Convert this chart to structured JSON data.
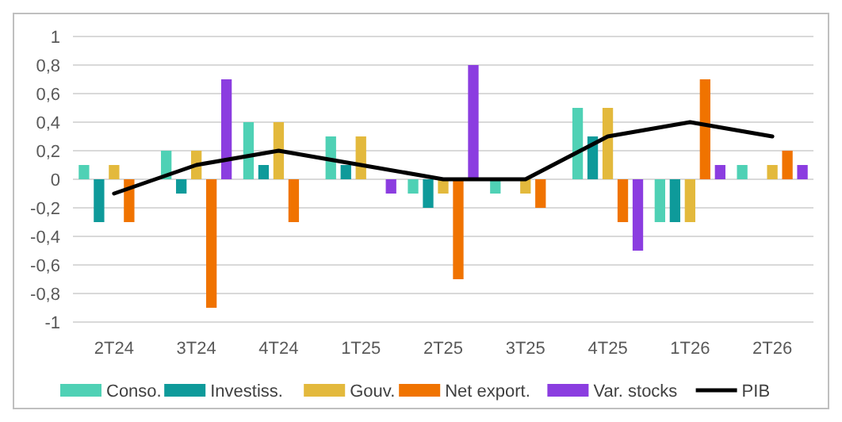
{
  "chart_data": {
    "type": "bar",
    "categories": [
      "2T24",
      "3T24",
      "4T24",
      "1T25",
      "2T25",
      "3T25",
      "4T25",
      "1T26",
      "2T26"
    ],
    "series": [
      {
        "name": "Conso.",
        "color": "#4fd1b5",
        "values": [
          0.1,
          0.2,
          0.4,
          0.3,
          -0.1,
          -0.1,
          0.5,
          -0.3,
          0.1
        ]
      },
      {
        "name": "Investiss.",
        "color": "#0e9a9a",
        "values": [
          -0.3,
          -0.1,
          0.1,
          0.1,
          -0.2,
          0,
          0.3,
          -0.3,
          0
        ]
      },
      {
        "name": "Gouv.",
        "color": "#e3b93c",
        "values": [
          0.1,
          0.2,
          0.4,
          0.3,
          -0.1,
          -0.1,
          0.5,
          -0.3,
          0.1
        ]
      },
      {
        "name": "Net export.",
        "color": "#f07300",
        "values": [
          -0.3,
          -0.9,
          -0.3,
          0,
          -0.7,
          -0.2,
          -0.3,
          0.7,
          0.2
        ]
      },
      {
        "name": "Var. stocks",
        "color": "#8b3de0",
        "values": [
          0,
          0.7,
          0,
          -0.1,
          0.8,
          0,
          -0.5,
          0.1,
          0.1
        ]
      },
      {
        "name": "PIB",
        "type": "line",
        "color": "#000000",
        "values": [
          -0.1,
          0.1,
          0.2,
          0.1,
          0,
          0,
          0.3,
          0.4,
          0.3
        ]
      }
    ],
    "ylim": [
      -1,
      1
    ],
    "yticks": [
      {
        "value": -1,
        "label": "-1"
      },
      {
        "value": -0.8,
        "label": "-0,8"
      },
      {
        "value": -0.6,
        "label": "-0,6"
      },
      {
        "value": -0.4,
        "label": "-0,4"
      },
      {
        "value": -0.2,
        "label": "-0,2"
      },
      0,
      {
        "value": 0.2,
        "label": "0,2"
      },
      {
        "value": 0.4,
        "label": "0,4"
      },
      {
        "value": 0.6,
        "label": "0,6"
      },
      {
        "value": 0.8,
        "label": "0,8"
      },
      1
    ],
    "grid": "y",
    "legend": "bottom"
  }
}
